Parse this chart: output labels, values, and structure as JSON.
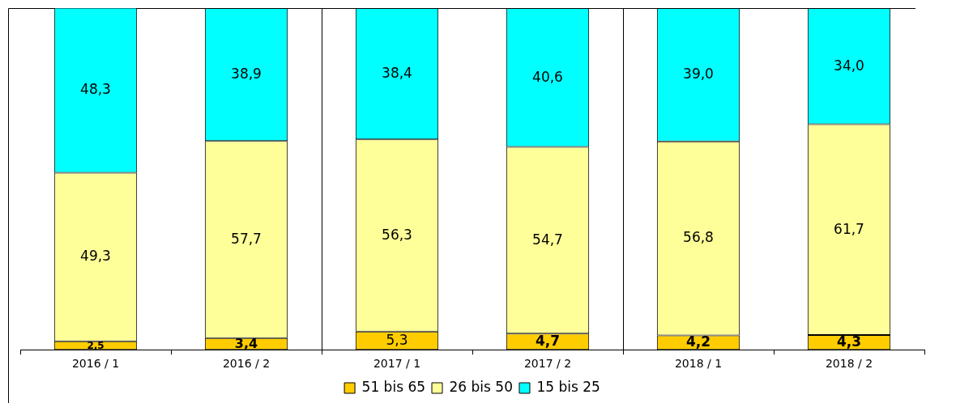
{
  "chart_data": {
    "type": "bar",
    "stacked": true,
    "legend": "bottom",
    "categories": [
      "2016 / 1",
      "2016 / 2",
      "2017 / 1",
      "2017 / 2",
      "2018 / 1",
      "2018 / 2"
    ],
    "ylim": [
      0,
      100
    ],
    "series": [
      {
        "name": "51 bis 65",
        "color": "#ffcc00",
        "values": [
          2.5,
          3.4,
          5.3,
          4.7,
          4.2,
          4.3
        ],
        "value_labels": [
          "2,5",
          "3,4",
          "5,3",
          "4,7",
          "4,2",
          "4,3"
        ]
      },
      {
        "name": "26 bis 50",
        "color": "#ffff99",
        "values": [
          49.3,
          57.7,
          56.3,
          54.7,
          56.8,
          61.7
        ],
        "value_labels": [
          "49,3",
          "57,7",
          "56,3",
          "54,7",
          "56,8",
          "61,7"
        ]
      },
      {
        "name": "15 bis 25",
        "color": "#00ffff",
        "values": [
          48.3,
          38.9,
          38.4,
          40.6,
          39.0,
          34.0
        ],
        "value_labels": [
          "48,3",
          "38,9",
          "38,4",
          "40,6",
          "39,0",
          "34,0"
        ]
      }
    ]
  }
}
